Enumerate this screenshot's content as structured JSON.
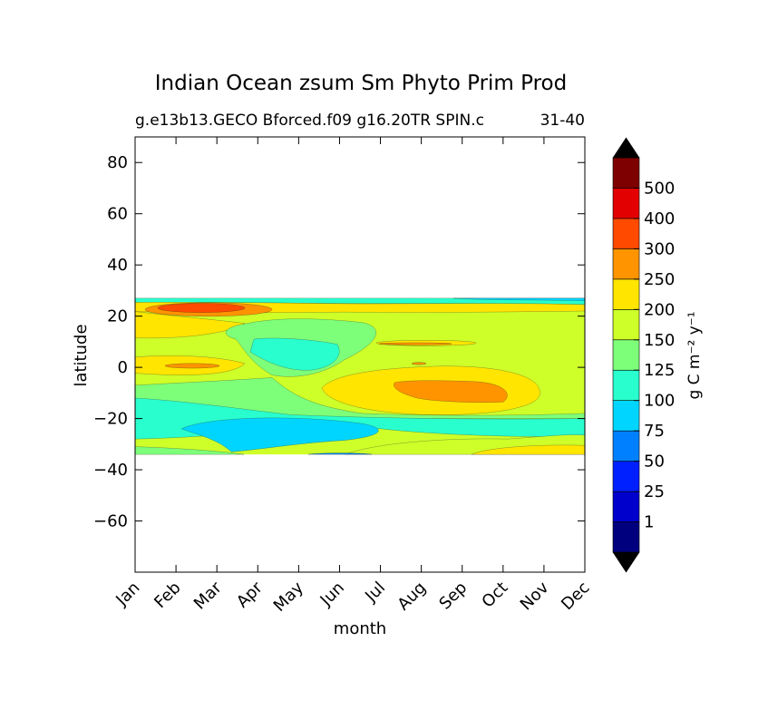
{
  "chart_data": {
    "type": "contourf",
    "title": "Indian Ocean zsum Sm Phyto Prim Prod",
    "subtitle": "g.e13b13.GECO Bforced.f09 g16.20TR SPIN.c",
    "subtitle_right": "31-40",
    "xlabel": "month",
    "ylabel": "latitude",
    "x_categories": [
      "Jan",
      "Feb",
      "Mar",
      "Apr",
      "May",
      "Jun",
      "Jul",
      "Aug",
      "Sep",
      "Oct",
      "Nov",
      "Dec"
    ],
    "ylim": [
      -80,
      90
    ],
    "yticks": [
      80,
      60,
      40,
      20,
      0,
      -20,
      -40,
      -60
    ],
    "data_lat_range": [
      -34,
      27
    ],
    "colorbar": {
      "label": "g C m⁻² y⁻¹",
      "levels": [
        1,
        25,
        50,
        75,
        100,
        125,
        150,
        200,
        250,
        300,
        400,
        500
      ],
      "tick_labels": [
        "1",
        "25",
        "50",
        "75",
        "100",
        "125",
        "150",
        "200",
        "250",
        "300",
        "400",
        "500"
      ],
      "colors": [
        "#00007f",
        "#0000cd",
        "#0020ff",
        "#0080ff",
        "#00d5ff",
        "#29ffce",
        "#7dff7a",
        "#ceff29",
        "#ffe500",
        "#ff9400",
        "#ff4a00",
        "#e30000",
        "#7f0000"
      ],
      "extend": "both",
      "extend_color": "#000000"
    },
    "field_value_bands": [
      {
        "lat_range": [
          25,
          27
        ],
        "typical_value": "100-125"
      },
      {
        "lat_range": [
          20,
          25
        ],
        "typical_value": "200-300",
        "max_region": "Feb-Mar, 300-400"
      },
      {
        "lat_range": [
          8,
          20
        ],
        "typical_value": "150-200"
      },
      {
        "lat_range": [
          -5,
          8
        ],
        "typical_value": "125-200",
        "notes": "200-250 maximum near Feb at 0"
      },
      {
        "lat_range": [
          -15,
          -5
        ],
        "typical_value": "150-250",
        "max_region": "Aug-Sep, 250-300"
      },
      {
        "lat_range": [
          -28,
          -15
        ],
        "typical_value": "75-125"
      },
      {
        "lat_range": [
          -34,
          -28
        ],
        "typical_value": "125-200"
      }
    ]
  }
}
